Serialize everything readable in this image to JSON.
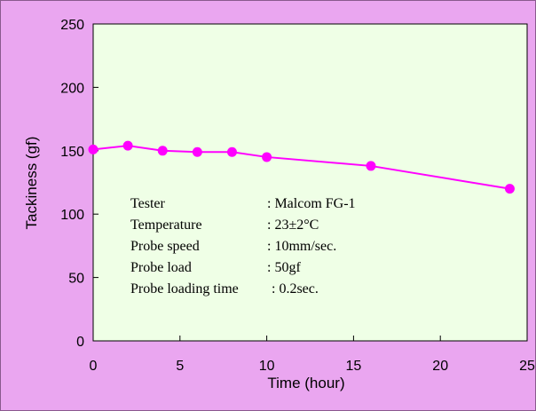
{
  "chart_data": {
    "type": "line",
    "xlabel": "Time (hour)",
    "ylabel": "Tackiness (gf)",
    "xlim": [
      0,
      25
    ],
    "ylim": [
      0,
      250
    ],
    "xticks": [
      "0",
      "5",
      "10",
      "15",
      "20",
      "25"
    ],
    "yticks": [
      "0",
      "50",
      "100",
      "150",
      "200",
      "250"
    ],
    "grid": false,
    "series": [
      {
        "x": [
          0,
          2,
          4,
          6,
          8,
          10,
          16,
          24
        ],
        "y": [
          151,
          154,
          150,
          149,
          149,
          145,
          138,
          120
        ]
      }
    ],
    "annotations": [
      {
        "label": "Tester",
        "value": ": Malcom FG-1"
      },
      {
        "label": "Temperature",
        "value": ": 23±2°C"
      },
      {
        "label": "Probe speed",
        "value": ": 10mm/sec."
      },
      {
        "label": "Probe load",
        "value": ": 50gf"
      },
      {
        "label": "Probe loading time",
        "value": ": 0.2sec."
      }
    ]
  },
  "colors": {
    "background": "#eaa6f0",
    "plot_area": "#efffe6",
    "series": "#ff00ff"
  }
}
